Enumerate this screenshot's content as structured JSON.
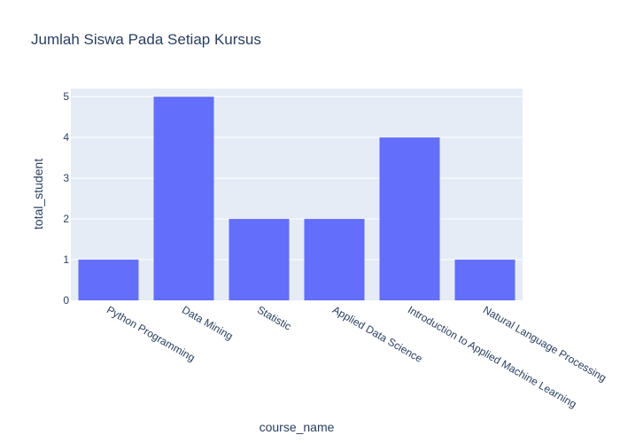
{
  "chart_data": {
    "type": "bar",
    "title": "Jumlah Siswa Pada Setiap Kursus",
    "xlabel": "course_name",
    "ylabel": "total_student",
    "categories": [
      "Python Programming",
      "Data Mining",
      "Statistic",
      "Applied Data Science",
      "Introduction to Applied Machine Learning",
      "Natural Language Processing"
    ],
    "values": [
      1,
      5,
      2,
      2,
      4,
      1
    ],
    "ylim": [
      0,
      5.2
    ],
    "yticks": [
      0,
      1,
      2,
      3,
      4,
      5
    ],
    "grid": true,
    "colors": {
      "bar": "#636efa",
      "plot_bg": "#e5ecf6",
      "grid": "#ffffff",
      "text": "#2a3f5f"
    }
  }
}
